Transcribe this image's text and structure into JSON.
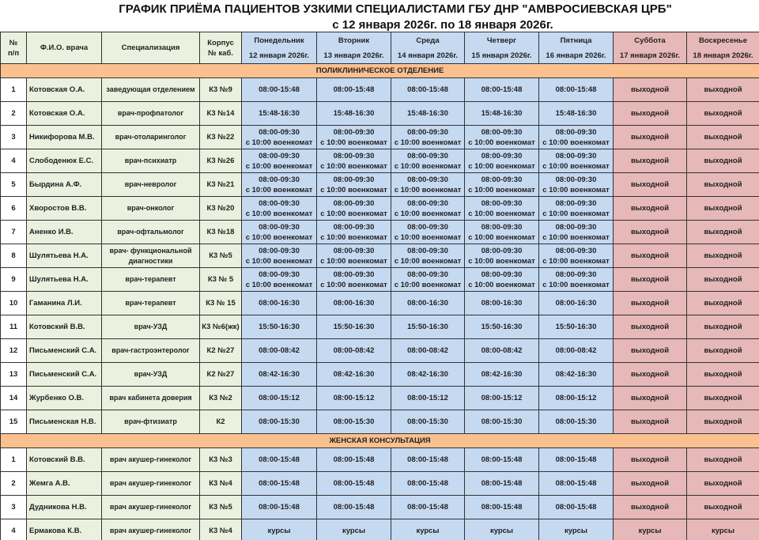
{
  "title": "ГРАФИК ПРИЁМА ПАЦИЕНТОВ УЗКИМИ СПЕЦИАЛИСТАМИ ГБУ  ДНР \"АМВРОСИЕВСКАЯ ЦРБ\"",
  "subtitle": "с 12 января 2026г. по 18 января 2026г.",
  "colors": {
    "info_header": "#ebf1de",
    "weekday": "#c5d9f1",
    "weekend": "#e6b8b7",
    "section": "#fac090"
  },
  "headers": {
    "num": "№\nп/п",
    "name": "Ф.И.О. врача",
    "spec": "Специализация",
    "room": "Корпус\n№ каб.",
    "days": [
      {
        "day": "Понедельник",
        "date": "12 января 2026г."
      },
      {
        "day": "Вторник",
        "date": "13 января 2026г."
      },
      {
        "day": "Среда",
        "date": "14 января 2026г."
      },
      {
        "day": "Четверг",
        "date": "15 января 2026г."
      },
      {
        "day": "Пятница",
        "date": "16 января 2026г."
      },
      {
        "day": "Суббота",
        "date": "17 января 2026г."
      },
      {
        "day": "Воскресенье",
        "date": "18 января 2026г."
      }
    ]
  },
  "sections": [
    {
      "title": "ПОЛИКЛИНИЧЕСКОЕ ОТДЕЛЕНИЕ",
      "rows": [
        {
          "num": "1",
          "name": "Котовская О.А.",
          "spec": "заведующая отделением",
          "room": "К3 №9",
          "schedule": [
            "08:00-15:48",
            "08:00-15:48",
            "08:00-15:48",
            "08:00-15:48",
            "08:00-15:48",
            "выходной",
            "выходной"
          ]
        },
        {
          "num": "2",
          "name": "Котовская О.А.",
          "spec": "врач-профпатолог",
          "room": "К3 №14",
          "schedule": [
            "15:48-16:30",
            "15:48-16:30",
            "15:48-16:30",
            "15:48-16:30",
            "15:48-16:30",
            "выходной",
            "выходной"
          ]
        },
        {
          "num": "3",
          "name": "Никифорова М.В.",
          "spec": "врач-отоларинголог",
          "room": "К3 №22",
          "schedule": [
            "08:00-09:30\nс 10:00 военкомат",
            "08:00-09:30\nс 10:00 военкомат",
            "08:00-09:30\nс 10:00 военкомат",
            "08:00-09:30\nс 10:00 военкомат",
            "08:00-09:30\nс 10:00 военкомат",
            "выходной",
            "выходной"
          ]
        },
        {
          "num": "4",
          "name": "Слободенюк Е.С.",
          "spec": "врач-психиатр",
          "room": "К3 №26",
          "schedule": [
            "08:00-09:30\nс 10:00 военкомат",
            "08:00-09:30\nс 10:00 военкомат",
            "08:00-09:30\nс 10:00 военкомат",
            "08:00-09:30\nс 10:00 военкомат",
            "08:00-09:30\nс 10:00 военкомат",
            "выходной",
            "выходной"
          ]
        },
        {
          "num": "5",
          "name": "Бырдина А.Ф.",
          "spec": "врач-невролог",
          "room": "К3 №21",
          "schedule": [
            "08:00-09:30\nс 10:00 военкомат",
            "08:00-09:30\nс 10:00 военкомат",
            "08:00-09:30\nс 10:00 военкомат",
            "08:00-09:30\nс 10:00 военкомат",
            "08:00-09:30\nс 10:00 военкомат",
            "выходной",
            "выходной"
          ]
        },
        {
          "num": "6",
          "name": "Хворостов В.В.",
          "spec": "врач-онколог",
          "room": "К3 №20",
          "schedule": [
            "08:00-09:30\nс 10:00 военкомат",
            "08:00-09:30\nс 10:00 военкомат",
            "08:00-09:30\nс 10:00 военкомат",
            "08:00-09:30\nс 10:00 военкомат",
            "08:00-09:30\nс 10:00 военкомат",
            "выходной",
            "выходной"
          ]
        },
        {
          "num": "7",
          "name": "Аненко И.В.",
          "spec": "врач-офтальмолог",
          "room": "К3 №18",
          "schedule": [
            "08:00-09:30\nс 10:00 военкомат",
            "08:00-09:30\nс 10:00 военкомат",
            "08:00-09:30\nс 10:00 военкомат",
            "08:00-09:30\nс 10:00 военкомат",
            "08:00-09:30\nс 10:00 военкомат",
            "выходной",
            "выходной"
          ]
        },
        {
          "num": "8",
          "name": "Шулятьева Н.А.",
          "spec": "врач- функциональной\nдиагностики",
          "room": "К3 №5",
          "schedule": [
            "08:00-09:30\nс 10:00 военкомат",
            "08:00-09:30\nс 10:00 военкомат",
            "08:00-09:30\nс 10:00 военкомат",
            "08:00-09:30\nс 10:00 военкомат",
            "08:00-09:30\nс 10:00 военкомат",
            "выходной",
            "выходной"
          ]
        },
        {
          "num": "9",
          "name": "Шулятьева Н.А.",
          "spec": "врач-терапевт",
          "room": "К3 № 5",
          "schedule": [
            "08:00-09:30\nс 10:00 военкомат",
            "08:00-09:30\nс 10:00 военкомат",
            "08:00-09:30\nс 10:00 военкомат",
            "08:00-09:30\nс 10:00 военкомат",
            "08:00-09:30\nс 10:00 военкомат",
            "выходной",
            "выходной"
          ]
        },
        {
          "num": "10",
          "name": "Гаманина Л.И.",
          "spec": "врач-терапевт",
          "room": "К3 № 15",
          "schedule": [
            "08:00-16:30",
            "08:00-16:30",
            "08:00-16:30",
            "08:00-16:30",
            "08:00-16:30",
            "выходной",
            "выходной"
          ]
        },
        {
          "num": "11",
          "name": "Котовский В.В.",
          "spec": "врач-УЗД",
          "room": "К3 №6(жк)",
          "schedule": [
            "15:50-16:30",
            "15:50-16:30",
            "15:50-16:30",
            "15:50-16:30",
            "15:50-16:30",
            "выходной",
            "выходной"
          ]
        },
        {
          "num": "12",
          "name": "Письменский С.А.",
          "spec": "врач-гастроэнтеролог",
          "room": "К2 №27",
          "schedule": [
            "08:00-08:42",
            "08:00-08:42",
            "08:00-08:42",
            "08:00-08:42",
            "08:00-08:42",
            "выходной",
            "выходной"
          ]
        },
        {
          "num": "13",
          "name": "Письменский С.А.",
          "spec": "врач-УЗД",
          "room": "К2 №27",
          "schedule": [
            "08:42-16:30",
            "08:42-16:30",
            "08:42-16:30",
            "08:42-16:30",
            "08:42-16:30",
            "выходной",
            "выходной"
          ]
        },
        {
          "num": "14",
          "name": "Журбенко О.В.",
          "spec": "врач кабинета доверия",
          "room": "К3 №2",
          "schedule": [
            "08:00-15:12",
            "08:00-15:12",
            "08:00-15:12",
            "08:00-15:12",
            "08:00-15:12",
            "выходной",
            "выходной"
          ]
        },
        {
          "num": "15",
          "name": "Письменская Н.В.",
          "spec": "врач-фтизиатр",
          "room": "К2",
          "schedule": [
            "08:00-15:30",
            "08:00-15:30",
            "08:00-15:30",
            "08:00-15:30",
            "08:00-15:30",
            "выходной",
            "выходной"
          ]
        }
      ]
    },
    {
      "title": "ЖЕНСКАЯ КОНСУЛЬТАЦИЯ",
      "rows": [
        {
          "num": "1",
          "name": "Котовский В.В.",
          "spec": "врач акушер-гинеколог",
          "room": "К3 №3",
          "schedule": [
            "08:00-15:48",
            "08:00-15:48",
            "08:00-15:48",
            "08:00-15:48",
            "08:00-15:48",
            "выходной",
            "выходной"
          ]
        },
        {
          "num": "2",
          "name": "Жемга А.В.",
          "spec": "врач акушер-гинеколог",
          "room": "К3 №4",
          "schedule": [
            "08:00-15:48",
            "08:00-15:48",
            "08:00-15:48",
            "08:00-15:48",
            "08:00-15:48",
            "выходной",
            "выходной"
          ]
        },
        {
          "num": "3",
          "name": "Дудникова Н.В.",
          "spec": "врач акушер-гинеколог",
          "room": "К3 №5",
          "schedule": [
            "08:00-15:48",
            "08:00-15:48",
            "08:00-15:48",
            "08:00-15:48",
            "08:00-15:48",
            "выходной",
            "выходной"
          ]
        },
        {
          "num": "4",
          "name": "Ермакова К.В.",
          "spec": "врач акушер-гинеколог",
          "room": "К3 №4",
          "schedule": [
            "курсы",
            "курсы",
            "курсы",
            "курсы",
            "курсы",
            "курсы",
            "курсы"
          ]
        }
      ]
    }
  ]
}
